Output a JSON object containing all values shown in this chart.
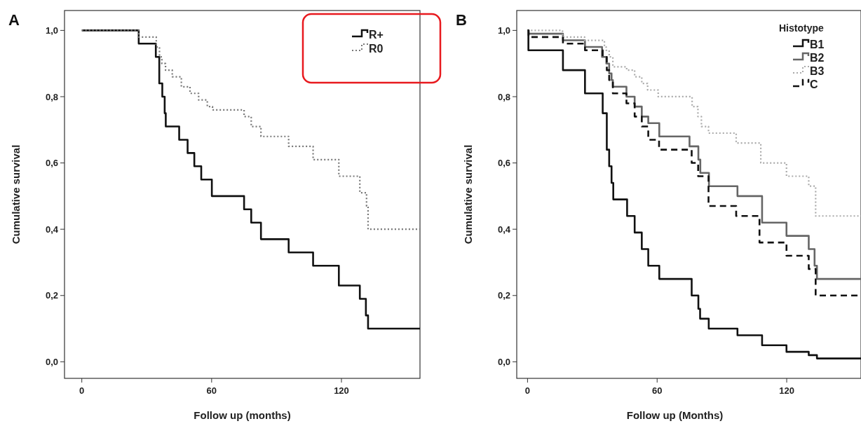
{
  "chart_data": [
    {
      "type": "step",
      "title": "A",
      "xlabel": "Follow up (months)",
      "ylabel": "Cumulative survival",
      "xlim": [
        -8,
        156.3
      ],
      "ylim": [
        -0.05,
        1.06
      ],
      "xticks": [
        0,
        60,
        120
      ],
      "yticks": [
        {
          "value": 0,
          "label": "0,0"
        },
        {
          "value": 0.2,
          "label": "0,2"
        },
        {
          "value": 0.4,
          "label": "0,4"
        },
        {
          "value": 0.6,
          "label": "0,6"
        },
        {
          "value": 0.8,
          "label": "0,8"
        },
        {
          "value": 1,
          "label": "1,0"
        }
      ],
      "legend": "top right",
      "grid": false,
      "series": [
        {
          "name": "R+",
          "color": "#111111",
          "line_style": "solid",
          "x": [
            0,
            26.3,
            34.2,
            35.8,
            37.2,
            38.3,
            38.8,
            45,
            48.9,
            52,
            55.2,
            60.1,
            75,
            78.3,
            82.8,
            95.6,
            106.9,
            118.8,
            128.5,
            131.3,
            132.3,
            156.3
          ],
          "values": [
            1,
            0.96,
            0.92,
            0.84,
            0.8,
            0.75,
            0.71,
            0.67,
            0.63,
            0.59,
            0.55,
            0.5,
            0.46,
            0.42,
            0.37,
            0.33,
            0.29,
            0.23,
            0.19,
            0.14,
            0.1,
            0.1
          ]
        },
        {
          "name": "R0",
          "color": "#777777",
          "line_style": "dotted",
          "x": [
            0,
            26.3,
            34.4,
            35.9,
            37,
            38.7,
            41.8,
            46,
            50,
            54,
            58,
            60.4,
            75,
            78.3,
            82.8,
            95.6,
            106.9,
            118.8,
            128.5,
            131.6,
            132.3,
            156.3
          ],
          "values": [
            1,
            0.98,
            0.95,
            0.92,
            0.9,
            0.88,
            0.86,
            0.83,
            0.81,
            0.79,
            0.77,
            0.76,
            0.74,
            0.71,
            0.68,
            0.65,
            0.61,
            0.56,
            0.51,
            0.47,
            0.4,
            0.4
          ]
        }
      ]
    },
    {
      "type": "step",
      "title": "B",
      "xlabel": "Follow up (Months)",
      "ylabel": "Cumulative survival",
      "legend_title": "Histotype",
      "xlim": [
        -5,
        154.4
      ],
      "ylim": [
        -0.05,
        1.06
      ],
      "xticks": [
        0,
        60,
        120
      ],
      "yticks": [
        {
          "value": 0,
          "label": "0,0"
        },
        {
          "value": 0.2,
          "label": "0,2"
        },
        {
          "value": 0.4,
          "label": "0,4"
        },
        {
          "value": 0.6,
          "label": "0,6"
        },
        {
          "value": 0.8,
          "label": "0,8"
        },
        {
          "value": 1,
          "label": "1,0"
        }
      ],
      "legend": "top right",
      "grid": false,
      "series": [
        {
          "name": "B1",
          "color": "#111111",
          "line_style": "solid",
          "x": [
            0,
            0.4,
            16.4,
            26.6,
            34.8,
            36.7,
            37.8,
            38.9,
            39.7,
            46.1,
            49.6,
            52.9,
            55.9,
            61,
            76,
            79.1,
            79.9,
            83.9,
            97.2,
            108.6,
            119.9,
            130.2,
            134,
            154.4
          ],
          "values": [
            1,
            0.94,
            0.88,
            0.81,
            0.75,
            0.64,
            0.59,
            0.54,
            0.49,
            0.44,
            0.39,
            0.34,
            0.29,
            0.25,
            0.2,
            0.16,
            0.13,
            0.1,
            0.08,
            0.05,
            0.03,
            0.02,
            0.01,
            0.01
          ]
        },
        {
          "name": "B2",
          "color": "#666666",
          "line_style": "solid",
          "x": [
            0,
            0.5,
            16.4,
            26.6,
            34.5,
            36.5,
            37.8,
            38.9,
            39.5,
            45.8,
            49.6,
            52.9,
            55.9,
            61,
            75,
            79.1,
            80,
            84,
            97.2,
            108.6,
            119.9,
            130.2,
            132.9,
            134,
            154.4
          ],
          "values": [
            1,
            0.99,
            0.97,
            0.95,
            0.92,
            0.9,
            0.87,
            0.85,
            0.83,
            0.8,
            0.77,
            0.74,
            0.72,
            0.68,
            0.65,
            0.61,
            0.57,
            0.53,
            0.5,
            0.42,
            0.38,
            0.34,
            0.29,
            0.25,
            0.25
          ]
        },
        {
          "name": "B3",
          "color": "#aaaaaa",
          "line_style": "dotted",
          "x": [
            0,
            16.2,
            26.4,
            35.6,
            36.4,
            37.8,
            39.5,
            45.9,
            49.6,
            52.9,
            55.6,
            60.5,
            76.2,
            78.9,
            80.5,
            83.8,
            96.6,
            108,
            119.9,
            130.2,
            133.4,
            154.4
          ],
          "values": [
            1,
            0.98,
            0.97,
            0.95,
            0.94,
            0.92,
            0.89,
            0.88,
            0.86,
            0.84,
            0.82,
            0.8,
            0.77,
            0.74,
            0.71,
            0.69,
            0.66,
            0.6,
            0.56,
            0.53,
            0.44,
            0.44
          ]
        },
        {
          "name": "C",
          "color": "#111111",
          "line_style": "dashed",
          "x": [
            0,
            0.5,
            16.4,
            26.6,
            34.8,
            36.7,
            37.8,
            39.5,
            45.8,
            49.6,
            52.9,
            55.9,
            60.9,
            76,
            79,
            83.8,
            96.6,
            107.4,
            119.9,
            130.2,
            133.4,
            154.4
          ],
          "values": [
            1,
            0.98,
            0.96,
            0.94,
            0.92,
            0.88,
            0.85,
            0.81,
            0.78,
            0.74,
            0.71,
            0.67,
            0.64,
            0.6,
            0.56,
            0.47,
            0.44,
            0.36,
            0.32,
            0.28,
            0.2,
            0.2
          ]
        }
      ]
    }
  ]
}
